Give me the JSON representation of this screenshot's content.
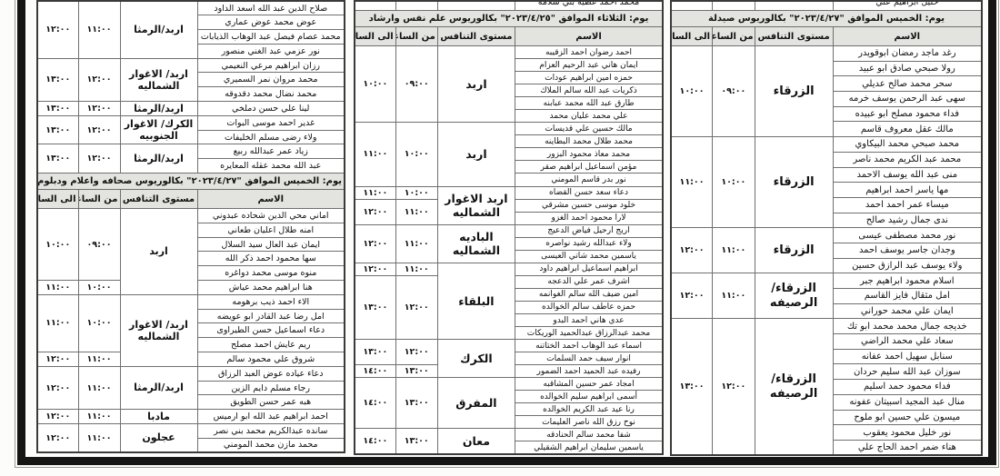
{
  "page": {
    "kind": "scanned interview schedule tables",
    "frame_color": "#151515",
    "header_bg": "#e3e3df",
    "grid_color": "#6f6f6f"
  },
  "headers": {
    "name": "الاسم",
    "level": "مستوى التنافس",
    "from": "من الساعة",
    "to": "الى الساعة"
  },
  "tables": [
    {
      "id": "left",
      "blocks": [
        {
          "type": "group",
          "level": "اربد/الرمثا",
          "names": [
            "صلاح الدين عبد الله اسعد الداود",
            "عوض محمد عوض عماري",
            "محمد عصام فيصل عبد الوهاب الذيابات",
            "نور عزمي عبد الغني منصور"
          ],
          "times": [
            {
              "from": "١١:٠٠",
              "to": "١٢:٠٠",
              "span": 4
            }
          ]
        },
        {
          "type": "group",
          "level": "اربد/ الاغوار الشماليه",
          "names": [
            "رزان ابراهيم مرعي النعيمي",
            "محمد مروان نمر السميري",
            "محمد نضال محمد دقدوقه"
          ],
          "times": [
            {
              "from": "١٢:٠٠",
              "to": "١٣:٠٠",
              "span": 3
            }
          ]
        },
        {
          "type": "group",
          "level": "اربد/الرمثا",
          "names": [
            "لينا علي حسن دملخي"
          ],
          "times": [
            {
              "from": "١٢:٠٠",
              "to": "١٣:٠٠",
              "span": 1
            }
          ]
        },
        {
          "type": "group",
          "level": "الكرك/ الاغوار الجنوبيه",
          "names": [
            "غدير احمد موسى البوات",
            "ولاء رضى مسلم الخليفات"
          ],
          "times": [
            {
              "from": "١٢:٠٠",
              "to": "١٣:٠٠",
              "span": 2
            }
          ]
        },
        {
          "type": "group",
          "level": "اربد/الرمثا",
          "names": [
            "زياد عمر عبدالله ربيع",
            "عبد الله محمد عقله المعايره"
          ],
          "times": [
            {
              "from": "١٢:٠٠",
              "to": "١٣:٠٠",
              "span": 2
            }
          ]
        },
        {
          "type": "day",
          "text": "يوم: الخميس  الموافق \"٢٠٢٣/٤/٢٧\" بكالوريوس صحافه واعلام ودبلوم احصاء"
        },
        {
          "type": "cols"
        },
        {
          "type": "group",
          "level": "اربد",
          "names": [
            "اماني محي الدين شحاده عبدوني",
            "امنه طلال اعليان طعاني",
            "ايمان عبد العال سيد السلال",
            "سها محمود احمد ذكر الله",
            "منوه موسى محمد دواغره",
            "هنا ابراهيم محمد عياش"
          ],
          "times": [
            {
              "from": "٠٩:٠٠",
              "to": "١٠:٠٠",
              "span": 5
            },
            {
              "from": "١٠:٠٠",
              "to": "١١:٠٠",
              "span": 1
            }
          ]
        },
        {
          "type": "group",
          "level": "اربد/ الاغوار الشماليه",
          "names": [
            "الاء احمد ذيب برهومه",
            "امل رضا عبد القادر ابو عويضه",
            "دعاء اسماعيل حسن الطيراوى",
            "ريم عايش احمد مصلح",
            "شروق علي محمود سالم"
          ],
          "times": [
            {
              "from": "١٠:٠٠",
              "to": "١١:٠٠",
              "span": 4
            },
            {
              "from": "١١:٠٠",
              "to": "١٢:٠٠",
              "span": 1
            }
          ]
        },
        {
          "type": "group",
          "level": "اربد/الرمثا",
          "names": [
            "دعاء عياده عوض العبد الرزاق",
            "رجاء مسلم دايم الزين",
            "هبه عمر حسن الطويق"
          ],
          "times": [
            {
              "from": "١١:٠٠",
              "to": "١٢:٠٠",
              "span": 3
            }
          ]
        },
        {
          "type": "group",
          "level": "مادبا",
          "names": [
            "احمد ابراهيم عبد الله ابو ارميس"
          ],
          "times": [
            {
              "from": "١١:٠٠",
              "to": "١٢:٠٠",
              "span": 1
            }
          ]
        },
        {
          "type": "group",
          "level": "عجلون",
          "names": [
            "سانده عبدالكريم محمد بني نصر",
            "محمد مازن محمد المومني"
          ],
          "times": [
            {
              "from": "١١:٠٠",
              "to": "١٢:٠٠",
              "span": 2
            }
          ]
        }
      ]
    },
    {
      "id": "middle",
      "blocks": [
        {
          "type": "clipped",
          "name": "محمد احمد عطيه بني سلامه"
        },
        {
          "type": "day",
          "text": "يوم: الثلاثاء  الموافق \"٢٠٢٣/٤/٢٥\" بكالوريوس علم نفس وارشاد"
        },
        {
          "type": "cols"
        },
        {
          "type": "group",
          "level": "اربد",
          "names": [
            "احمد رضوان احمد الزقيبه",
            "ايمان هاني عبد الرحيم العزام",
            "حمزه امين ابراهيم عودات",
            "ذكريات عبد الله سالم الملاك",
            "طارق عبد الله محمد عبابنه",
            "علي محمد عليان محمد"
          ],
          "times": [
            {
              "from": "٠٩:٠٠",
              "to": "١٠:٠٠",
              "span": 6
            }
          ]
        },
        {
          "type": "group",
          "level": "اربد",
          "names": [
            "مالك حسين علي قديسات",
            "محمد طلال محمد البطاينه",
            "محمد معاذ محمود البزور",
            "مؤمن اسماعيل ابراهيم صقر",
            "نور بدر قاسم المومني"
          ],
          "times": [
            {
              "from": "١٠:٠٠",
              "to": "١١:٠٠",
              "span": 5
            }
          ]
        },
        {
          "type": "group",
          "level": "اربد الاغوار الشماليه",
          "names": [
            "دعاء سعد حسن القضاه",
            "خلود موسى حسين مشرقي",
            "لارا محمود احمد الغزو"
          ],
          "times": [
            {
              "from": "١٠:٠٠",
              "to": "١١:٠٠",
              "span": 1
            },
            {
              "from": "١١:٠٠",
              "to": "١٢:٠٠",
              "span": 2
            }
          ]
        },
        {
          "type": "group",
          "level": "الباديه الشماليه",
          "names": [
            "اريج ارحيل فياض الدعيج",
            "ولاء عبدالله رشيد نواصره",
            "ياسمين محمد شاتي العيسى"
          ],
          "times": [
            {
              "from": "١١:٠٠",
              "to": "١٢:٠٠",
              "span": 3
            }
          ]
        },
        {
          "type": "group",
          "level": "البلقاء",
          "names": [
            "ابراهيم اسماعيل ابراهيم داود",
            "اشرف عمر علي الدعجه",
            "امين ضيف الله سالم الغوانمه",
            "حمزه عاطف سالم الخوالده",
            "عدي هاني احمد البدو",
            "محمد عبدالرزاق عبدالحميد الوريكات"
          ],
          "times": [
            {
              "from": "١١:٠٠",
              "to": "١٢:٠٠",
              "span": 1
            },
            {
              "from": "١٢:٠٠",
              "to": "١٣:٠٠",
              "span": 5
            }
          ]
        },
        {
          "type": "group",
          "level": "الكرك",
          "names": [
            "اسماء عبد الوهاب احمد الختاتنه",
            "انوار سيف حمد السلمات",
            "رفيده عبد الحميد احمد الضمور"
          ],
          "times": [
            {
              "from": "١٢:٠٠",
              "to": "١٣:٠٠",
              "span": 2
            },
            {
              "from": "١٣:٠٠",
              "to": "١٤:٠٠",
              "span": 1
            }
          ]
        },
        {
          "type": "group",
          "level": "المفرق",
          "names": [
            "امجاد عمر حسين المشاقبه",
            "أسمى ابراهيم سليم الخوالده",
            "رنا عيد عبد الكريم الخوالده",
            "نوح رزق الله ناصر العليمات"
          ],
          "times": [
            {
              "from": "١٣:٠٠",
              "to": "١٤:٠٠",
              "span": 4
            }
          ]
        },
        {
          "type": "group",
          "level": "معان",
          "names": [
            "شفا محمد سالم الحنادقه",
            "ياسمين سليمان ابراهيم الشقيلي"
          ],
          "times": [
            {
              "from": "١٣:٠٠",
              "to": "١٤:٠٠",
              "span": 2
            }
          ]
        }
      ]
    },
    {
      "id": "right",
      "blocks": [
        {
          "type": "clipped",
          "name": "خليل ابراهيم علي"
        },
        {
          "type": "day",
          "text": "يوم: الخميس  الموافق \"٢٠٢٣/٤/٢٧\" بكالوريوس صيدلة"
        },
        {
          "type": "cols"
        },
        {
          "type": "group",
          "level": "الزرقاء",
          "names": [
            "رغد ماجد رمضان ابوقويدر",
            "رولا صبحي صادق ابو عبيد",
            "سحر محمد صالح عديلي",
            "سهى عبد الرحمن يوسف خرمه",
            "فداء محمود مصلح ابو عبيده",
            "مالك عقل معروف قاسم"
          ],
          "times": [
            {
              "from": "٠٩:٠٠",
              "to": "١٠:٠٠",
              "span": 6
            }
          ]
        },
        {
          "type": "group",
          "level": "الزرقاء",
          "names": [
            "محمد صبحي محمد البيكاوي",
            "محمد عبد الكريم محمد ناصر",
            "منى عبد الله يوسف الاحمد",
            "مها ياسر احمد ابراهيم",
            "ميساء عمر احمد احمد",
            "ندى جمال رشيد صالح"
          ],
          "times": [
            {
              "from": "١٠:٠٠",
              "to": "١١:٠٠",
              "span": 6
            }
          ]
        },
        {
          "type": "group",
          "level": "الزرقاء",
          "names": [
            "نور محمد مصطفى عيسى",
            "وجدان جاسر يوسف احمد",
            "ولاء يوسف عبد الرازق حسين"
          ],
          "times": [
            {
              "from": "١١:٠٠",
              "to": "١٢:٠٠",
              "span": 3
            }
          ]
        },
        {
          "type": "group",
          "level": "الزرقاء/الرصيفه",
          "names": [
            "اسلام محمود ابراهيم جبر",
            "امل مثقال فايز القاسم",
            "ايمان علي محمد حوراني"
          ],
          "times": [
            {
              "from": "١١:٠٠",
              "to": "١٢:٠٠",
              "span": 3
            }
          ]
        },
        {
          "type": "group",
          "level": "الزرقاء/الرصيفه",
          "names": [
            "خديجه جمال محمد محمد ابو تك",
            "سعاد علي محمد الراضي",
            "سنابل سهيل احمد عفانه",
            "سوزان عبد الله سليم حردان",
            "فداء محمود حمد اسليم",
            "منال عبد المجيد اسبيتان عفونه",
            "ميسون علي حسين ابو ملوح",
            "نور خليل محمود يعقوب",
            "هناء ضمر احمد الحاج علي"
          ],
          "times": [
            {
              "from": "١٢:٠٠",
              "to": "١٣:٠٠",
              "span": 9
            }
          ]
        }
      ]
    }
  ]
}
